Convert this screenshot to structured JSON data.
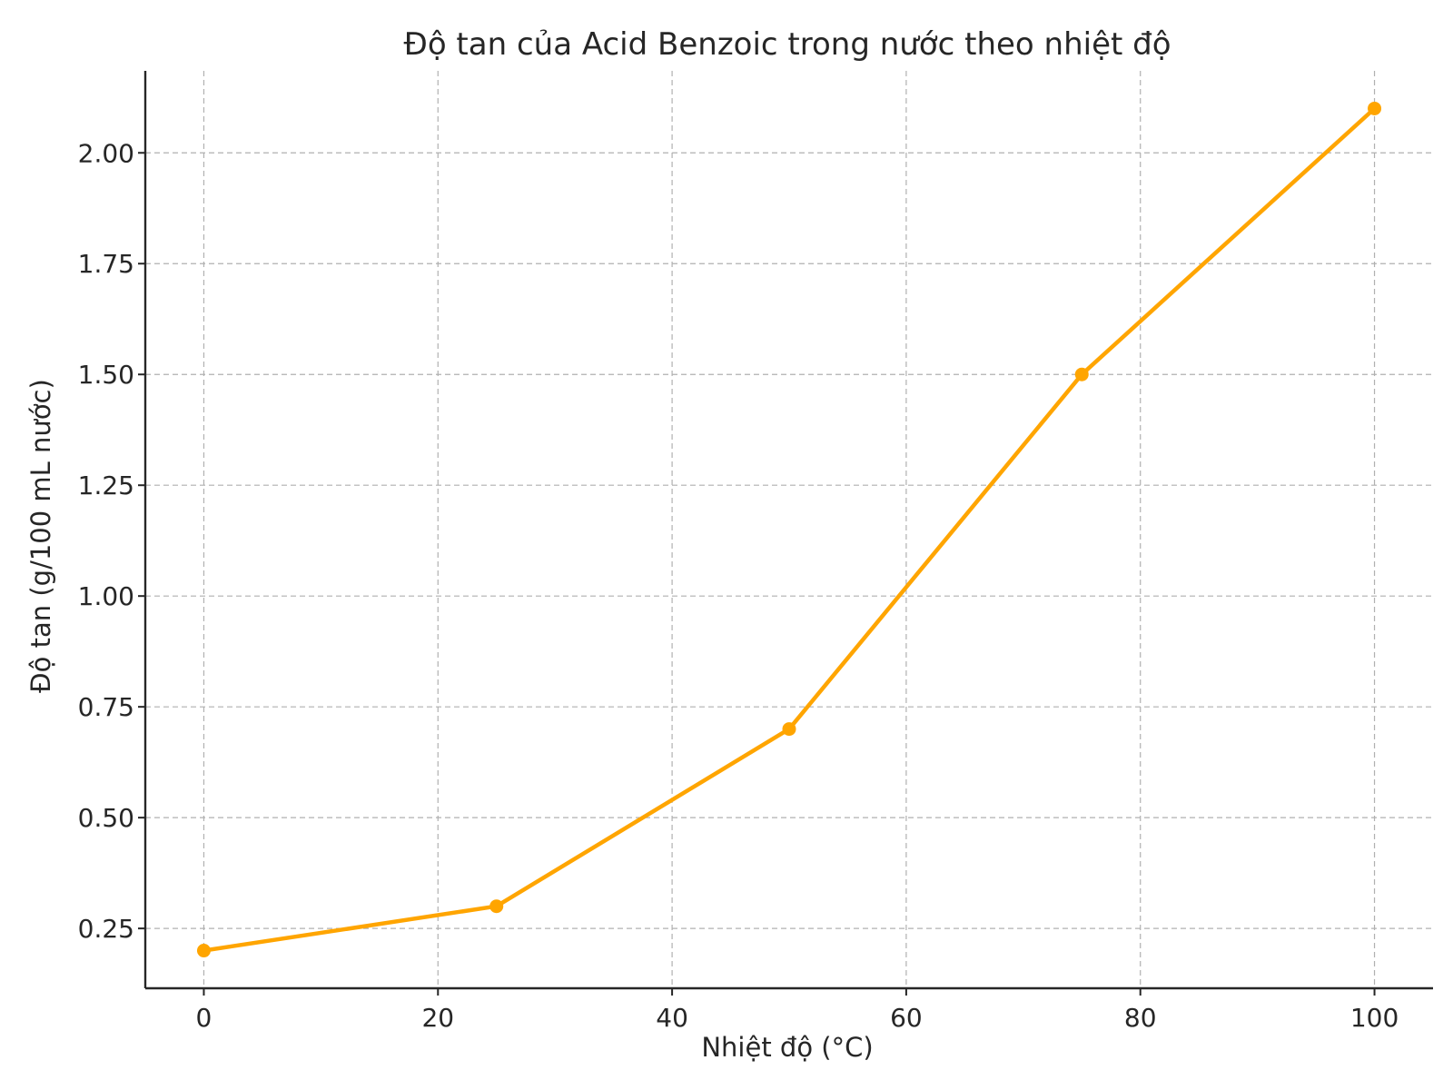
{
  "chart_data": {
    "type": "line",
    "title": "Độ tan của Acid Benzoic trong nước theo nhiệt độ",
    "xlabel": "Nhiệt độ (°C)",
    "ylabel": "Độ tan (g/100 mL nước)",
    "x": [
      0,
      25,
      50,
      75,
      100
    ],
    "series": [
      {
        "values": [
          0.2,
          0.3,
          0.7,
          1.5,
          2.1
        ],
        "color": "#FFA500",
        "marker": "circle"
      }
    ],
    "xlim": [
      -5,
      105
    ],
    "ylim": [
      0.115,
      2.185
    ],
    "xticks": [
      0,
      20,
      40,
      60,
      80,
      100
    ],
    "xtick_labels": [
      "0",
      "20",
      "40",
      "60",
      "80",
      "100"
    ],
    "yticks": [
      0.25,
      0.5,
      0.75,
      1.0,
      1.25,
      1.5,
      1.75,
      2.0
    ],
    "ytick_labels": [
      "0.25",
      "0.50",
      "0.75",
      "1.00",
      "1.25",
      "1.50",
      "1.75",
      "2.00"
    ],
    "grid": true,
    "legend": false
  }
}
